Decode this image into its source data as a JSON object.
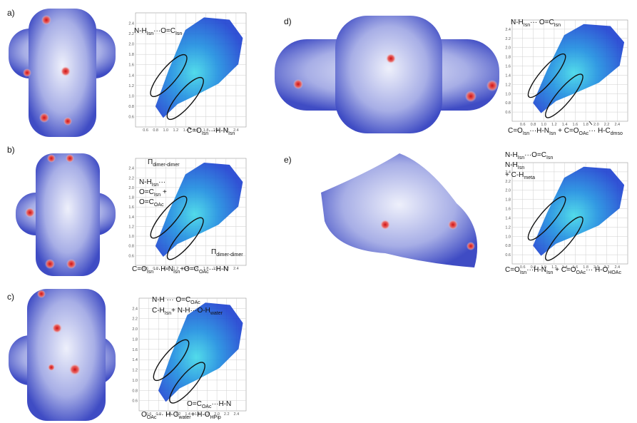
{
  "fingerprint_axes": {
    "lim": [
      0.4,
      2.6
    ],
    "ticks": [
      0.6,
      0.8,
      {
        "value": 1,
        "label": "1.0"
      },
      1.2,
      1.4,
      1.6,
      1.8,
      {
        "value": 2,
        "label": "2.0"
      },
      2.2,
      2.4
    ]
  },
  "panels": [
    {
      "label": "a)",
      "annotations": [
        [
          "N-H",
          {
            "sub": "Isn"
          },
          "···O=C",
          {
            "sub": "Isn"
          }
        ],
        [
          "C=O",
          {
            "sub": "Isn"
          },
          "···H-N",
          {
            "sub": "Isn"
          }
        ]
      ]
    },
    {
      "label": "b)",
      "annotations": [
        [
          "Π",
          {
            "sub": "dimer-dimer"
          }
        ],
        [
          "N-H",
          {
            "sub": "Isn"
          },
          "···"
        ],
        [
          "O=C",
          {
            "sub": "Isn"
          },
          " +"
        ],
        [
          "O=C",
          {
            "sub": "OAc"
          }
        ],
        [
          "Π",
          {
            "sub": "dimer-dimer"
          }
        ],
        [
          "C=O",
          {
            "sub": "Isn"
          },
          "···H-N",
          {
            "sub": "Isn"
          },
          "+O=C",
          {
            "sub": "OAc"
          },
          "···H-N"
        ]
      ]
    },
    {
      "label": "c)",
      "annotations": [
        [
          "N-H ··· O=C",
          {
            "sub": "OAc"
          }
        ],
        [
          "C-H",
          {
            "sub": "Isn"
          },
          "+ N-H···O-H",
          {
            "sub": "water"
          }
        ],
        [
          "O=C",
          {
            "sub": "OAc"
          },
          "···H-N"
        ],
        [
          "O",
          {
            "sub": "OAc"
          },
          "··· H-O",
          {
            "sub": "water"
          },
          "+ H-O",
          {
            "sub": "HPip"
          }
        ]
      ]
    },
    {
      "label": "d)",
      "annotations": [
        [
          "N-H",
          {
            "sub": "Isn"
          },
          "··· O=C",
          {
            "sub": "Isn"
          }
        ],
        [
          "C=O",
          {
            "sub": "Isn"
          },
          "···H-N",
          {
            "sub": "Isn"
          },
          " + C=O",
          {
            "sub": "OAc"
          },
          "··· H-C",
          {
            "sub": "dmso"
          }
        ]
      ]
    },
    {
      "label": "e)",
      "annotations": [
        [
          "N-H",
          {
            "sub": "Isn"
          },
          "···O=C",
          {
            "sub": "Isn"
          }
        ],
        [
          "N-H",
          {
            "sub": "Isn"
          }
        ],
        [
          "+ C-H",
          {
            "sub": "meta"
          }
        ],
        [
          "C=O",
          {
            "sub": "Isn"
          },
          "···H-N",
          {
            "sub": "Isn"
          },
          " + C=O",
          {
            "sub": "OAc"
          },
          "··· H-O",
          {
            "sub": "HOAc"
          }
        ]
      ]
    }
  ]
}
